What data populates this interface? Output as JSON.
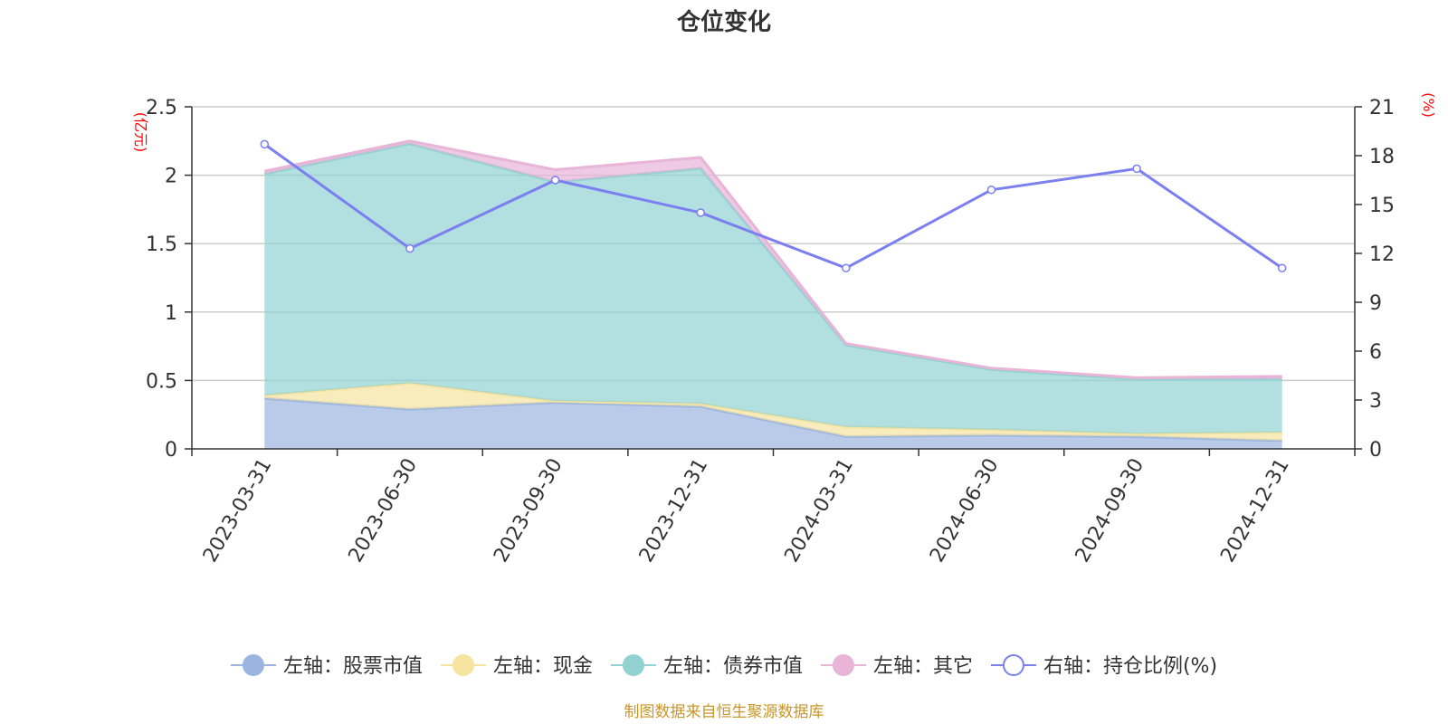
{
  "chart_data": {
    "type": "area",
    "title": "仓位变化",
    "categories": [
      "2023-03-31",
      "2023-06-30",
      "2023-09-30",
      "2023-12-31",
      "2024-03-31",
      "2024-06-30",
      "2024-09-30",
      "2024-12-31"
    ],
    "left_axis": {
      "unit": "(亿元)",
      "ylim": [
        0,
        2.5
      ],
      "ticks": [
        "0",
        "0.5",
        "1",
        "1.5",
        "2",
        "2.5"
      ]
    },
    "right_axis": {
      "unit": "(%)",
      "ylim": [
        0,
        21
      ],
      "ticks": [
        "0",
        "3",
        "6",
        "9",
        "12",
        "15",
        "18",
        "21"
      ]
    },
    "stacked_series": [
      {
        "name": "左轴：股票市值",
        "color": "#9bb5e0",
        "values": [
          0.37,
          0.29,
          0.34,
          0.31,
          0.09,
          0.1,
          0.09,
          0.06
        ]
      },
      {
        "name": "左轴：现金",
        "color": "#f7e4a0",
        "values": [
          0.02,
          0.19,
          0.01,
          0.02,
          0.07,
          0.04,
          0.02,
          0.06
        ]
      },
      {
        "name": "左轴：债券市值",
        "color": "#92d2d2",
        "values": [
          1.62,
          1.75,
          1.6,
          1.72,
          0.6,
          0.44,
          0.4,
          0.39
        ]
      },
      {
        "name": "左轴：其它",
        "color": "#e8b4d8",
        "values": [
          0.02,
          0.02,
          0.09,
          0.08,
          0.01,
          0.01,
          0.01,
          0.02
        ]
      }
    ],
    "line_series": {
      "name": "右轴：持仓比例(%)",
      "color": "#7b7ff0",
      "values": [
        18.7,
        12.3,
        16.5,
        14.5,
        11.1,
        15.9,
        17.2,
        11.1
      ]
    },
    "source": "制图数据来自恒生聚源数据库"
  }
}
